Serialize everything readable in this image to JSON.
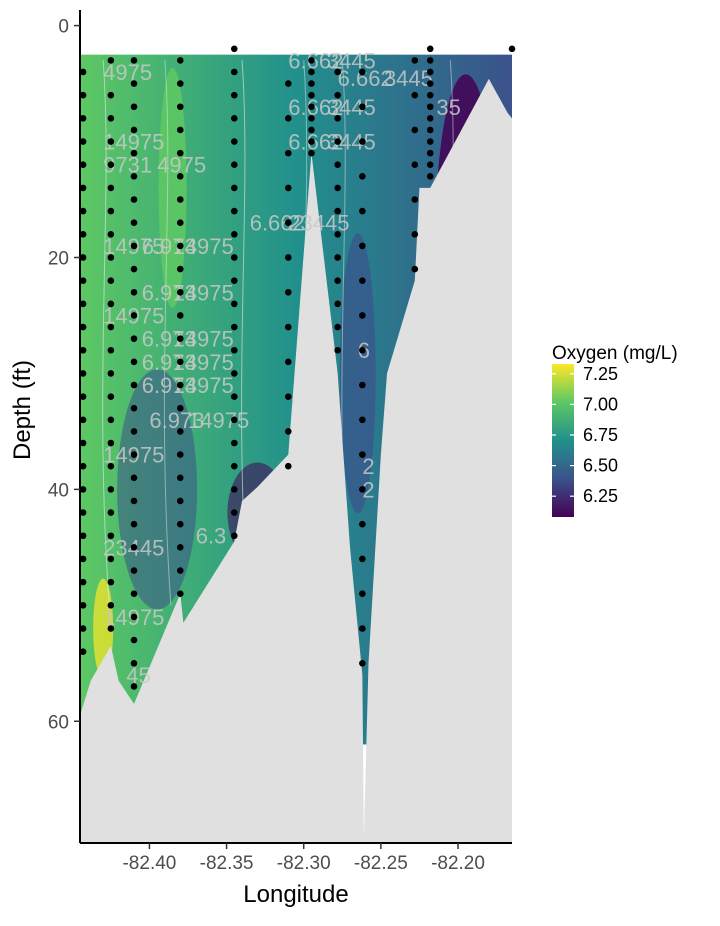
{
  "chart_data": {
    "type": "heatmap",
    "title": "",
    "xlabel": "Longitude",
    "ylabel": "Depth (ft)",
    "xlim": [
      -82.445,
      -82.165
    ],
    "ylim": [
      70.5,
      -1
    ],
    "y_reversed": true,
    "x_ticks": [
      -82.4,
      -82.35,
      -82.3,
      -82.25,
      -82.2
    ],
    "x_tick_labels": [
      "-82.40",
      "-82.35",
      "-82.30",
      "-82.25",
      "-82.20"
    ],
    "y_ticks": [
      0,
      20,
      40,
      60
    ],
    "y_tick_labels": [
      "0",
      "20",
      "40",
      "60"
    ],
    "legend": {
      "title": "Oxygen (mg/L)",
      "position": "right",
      "min": 6.08,
      "max": 7.33,
      "ticks": [
        7.25,
        7.0,
        6.75,
        6.5,
        6.25
      ],
      "tick_labels": [
        "7.25",
        "7.00",
        "6.75",
        "6.50",
        "6.25"
      ],
      "colors": [
        "#440154",
        "#3b528b",
        "#21908c",
        "#5dc863",
        "#fde725"
      ]
    },
    "bottom_fill_color": "#e0e0e0",
    "bottom_profile": [
      [
        -82.445,
        59.5
      ],
      [
        -82.438,
        56.5
      ],
      [
        -82.425,
        53.5
      ],
      [
        -82.42,
        56.5
      ],
      [
        -82.41,
        58.5
      ],
      [
        -82.38,
        49.0
      ],
      [
        -82.378,
        51.5
      ],
      [
        -82.345,
        44.5
      ],
      [
        -82.34,
        41.0
      ],
      [
        -82.33,
        39.8
      ],
      [
        -82.31,
        37.0
      ],
      [
        -82.295,
        11.0
      ],
      [
        -82.278,
        30.0
      ],
      [
        -82.27,
        45.0
      ],
      [
        -82.262,
        56.0
      ],
      [
        -82.261,
        70.0
      ],
      [
        -82.258,
        55.0
      ],
      [
        -82.25,
        37.0
      ],
      [
        -82.246,
        30.0
      ],
      [
        -82.228,
        22.0
      ],
      [
        -82.225,
        14.0
      ],
      [
        -82.218,
        14.0
      ],
      [
        -82.18,
        4.6
      ],
      [
        -82.168,
        7.5
      ],
      [
        -82.165,
        8.0
      ]
    ],
    "casts": [
      {
        "lon": -82.443,
        "depths": [
          4,
          6,
          8,
          10,
          12,
          14,
          16,
          18,
          20,
          22,
          24,
          26,
          28,
          30,
          32,
          34,
          36,
          38,
          40,
          42,
          44,
          46,
          48,
          50,
          52,
          54
        ]
      },
      {
        "lon": -82.425,
        "depths": [
          3,
          6,
          8,
          10,
          12,
          14,
          16,
          18,
          20,
          22,
          24,
          26,
          28,
          30,
          32,
          34,
          36,
          38,
          40,
          42,
          44,
          46,
          48,
          50,
          52
        ]
      },
      {
        "lon": -82.41,
        "depths": [
          3,
          5,
          7,
          9,
          11,
          13,
          15,
          17,
          19,
          21,
          23,
          25,
          27,
          29,
          31,
          33,
          35,
          37,
          39,
          41,
          43,
          45,
          47,
          49,
          51,
          53,
          55,
          57
        ]
      },
      {
        "lon": -82.38,
        "depths": [
          3,
          5,
          7,
          9,
          11,
          13,
          15,
          17,
          19,
          21,
          23,
          25,
          27,
          29,
          31,
          33,
          35,
          37,
          39,
          41,
          43,
          45,
          47,
          49
        ]
      },
      {
        "lon": -82.345,
        "depths": [
          2,
          4,
          6,
          8,
          10,
          12,
          14,
          16,
          18,
          20,
          22,
          24,
          26,
          28,
          30,
          32,
          34,
          36,
          38,
          40,
          42,
          44
        ]
      },
      {
        "lon": -82.31,
        "depths": [
          5,
          8,
          11,
          14,
          17,
          20,
          23,
          26,
          29,
          32,
          35,
          38
        ]
      },
      {
        "lon": -82.295,
        "depths": [
          3,
          4,
          5,
          6,
          7,
          8,
          9,
          10,
          11
        ]
      },
      {
        "lon": -82.278,
        "depths": [
          4,
          6,
          8,
          10,
          12,
          14,
          16,
          18,
          20,
          22,
          24,
          26,
          28
        ]
      },
      {
        "lon": -82.262,
        "depths": [
          4,
          7,
          10,
          13,
          16,
          19,
          22,
          25,
          28,
          31,
          34,
          37,
          40,
          43,
          46,
          49,
          52,
          55
        ]
      },
      {
        "lon": -82.228,
        "depths": [
          3,
          6,
          9,
          12,
          15,
          18,
          21
        ]
      },
      {
        "lon": -82.218,
        "depths": [
          2,
          3,
          4,
          5,
          6,
          7,
          8,
          9,
          10,
          11,
          12,
          13
        ]
      },
      {
        "lon": -82.165,
        "depths": [
          2
        ]
      }
    ],
    "contour_labels": [
      {
        "text": "4975",
        "lon": -82.43,
        "depth": 4
      },
      {
        "text": "14975",
        "lon": -82.43,
        "depth": 10
      },
      {
        "text": "9731",
        "lon": -82.43,
        "depth": 12
      },
      {
        "text": "4975",
        "lon": -82.395,
        "depth": 12
      },
      {
        "text": "14975",
        "lon": -82.43,
        "depth": 19
      },
      {
        "text": "6.973",
        "lon": -82.405,
        "depth": 19
      },
      {
        "text": "14975",
        "lon": -82.385,
        "depth": 19
      },
      {
        "text": "6.973",
        "lon": -82.405,
        "depth": 23
      },
      {
        "text": "14975",
        "lon": -82.385,
        "depth": 23
      },
      {
        "text": "14975",
        "lon": -82.43,
        "depth": 25
      },
      {
        "text": "6.973",
        "lon": -82.405,
        "depth": 27
      },
      {
        "text": "14975",
        "lon": -82.385,
        "depth": 27
      },
      {
        "text": "6.973",
        "lon": -82.405,
        "depth": 29
      },
      {
        "text": "14975",
        "lon": -82.385,
        "depth": 29
      },
      {
        "text": "6.973",
        "lon": -82.405,
        "depth": 31
      },
      {
        "text": "14975",
        "lon": -82.385,
        "depth": 31
      },
      {
        "text": "6.973",
        "lon": -82.4,
        "depth": 34
      },
      {
        "text": "14975",
        "lon": -82.375,
        "depth": 34
      },
      {
        "text": "14975",
        "lon": -82.43,
        "depth": 37
      },
      {
        "text": "6.3",
        "lon": -82.37,
        "depth": 44
      },
      {
        "text": "23445",
        "lon": -82.43,
        "depth": 45
      },
      {
        "text": "14975",
        "lon": -82.43,
        "depth": 51
      },
      {
        "text": "45",
        "lon": -82.415,
        "depth": 56
      },
      {
        "text": "6.662",
        "lon": -82.335,
        "depth": 17
      },
      {
        "text": "23445",
        "lon": -82.31,
        "depth": 17
      },
      {
        "text": "6.662",
        "lon": -82.31,
        "depth": 3
      },
      {
        "text": "3445",
        "lon": -82.285,
        "depth": 3
      },
      {
        "text": "6.662",
        "lon": -82.278,
        "depth": 4.5
      },
      {
        "text": "3445",
        "lon": -82.248,
        "depth": 4.5
      },
      {
        "text": "6.662",
        "lon": -82.31,
        "depth": 7
      },
      {
        "text": "3445",
        "lon": -82.285,
        "depth": 7
      },
      {
        "text": "6.662",
        "lon": -82.31,
        "depth": 10
      },
      {
        "text": "3445",
        "lon": -82.285,
        "depth": 10
      },
      {
        "text": "6",
        "lon": -82.265,
        "depth": 28
      },
      {
        "text": "2",
        "lon": -82.262,
        "depth": 38
      },
      {
        "text": "2",
        "lon": -82.262,
        "depth": 40
      },
      {
        "text": "35",
        "lon": -82.214,
        "depth": 7
      }
    ]
  }
}
